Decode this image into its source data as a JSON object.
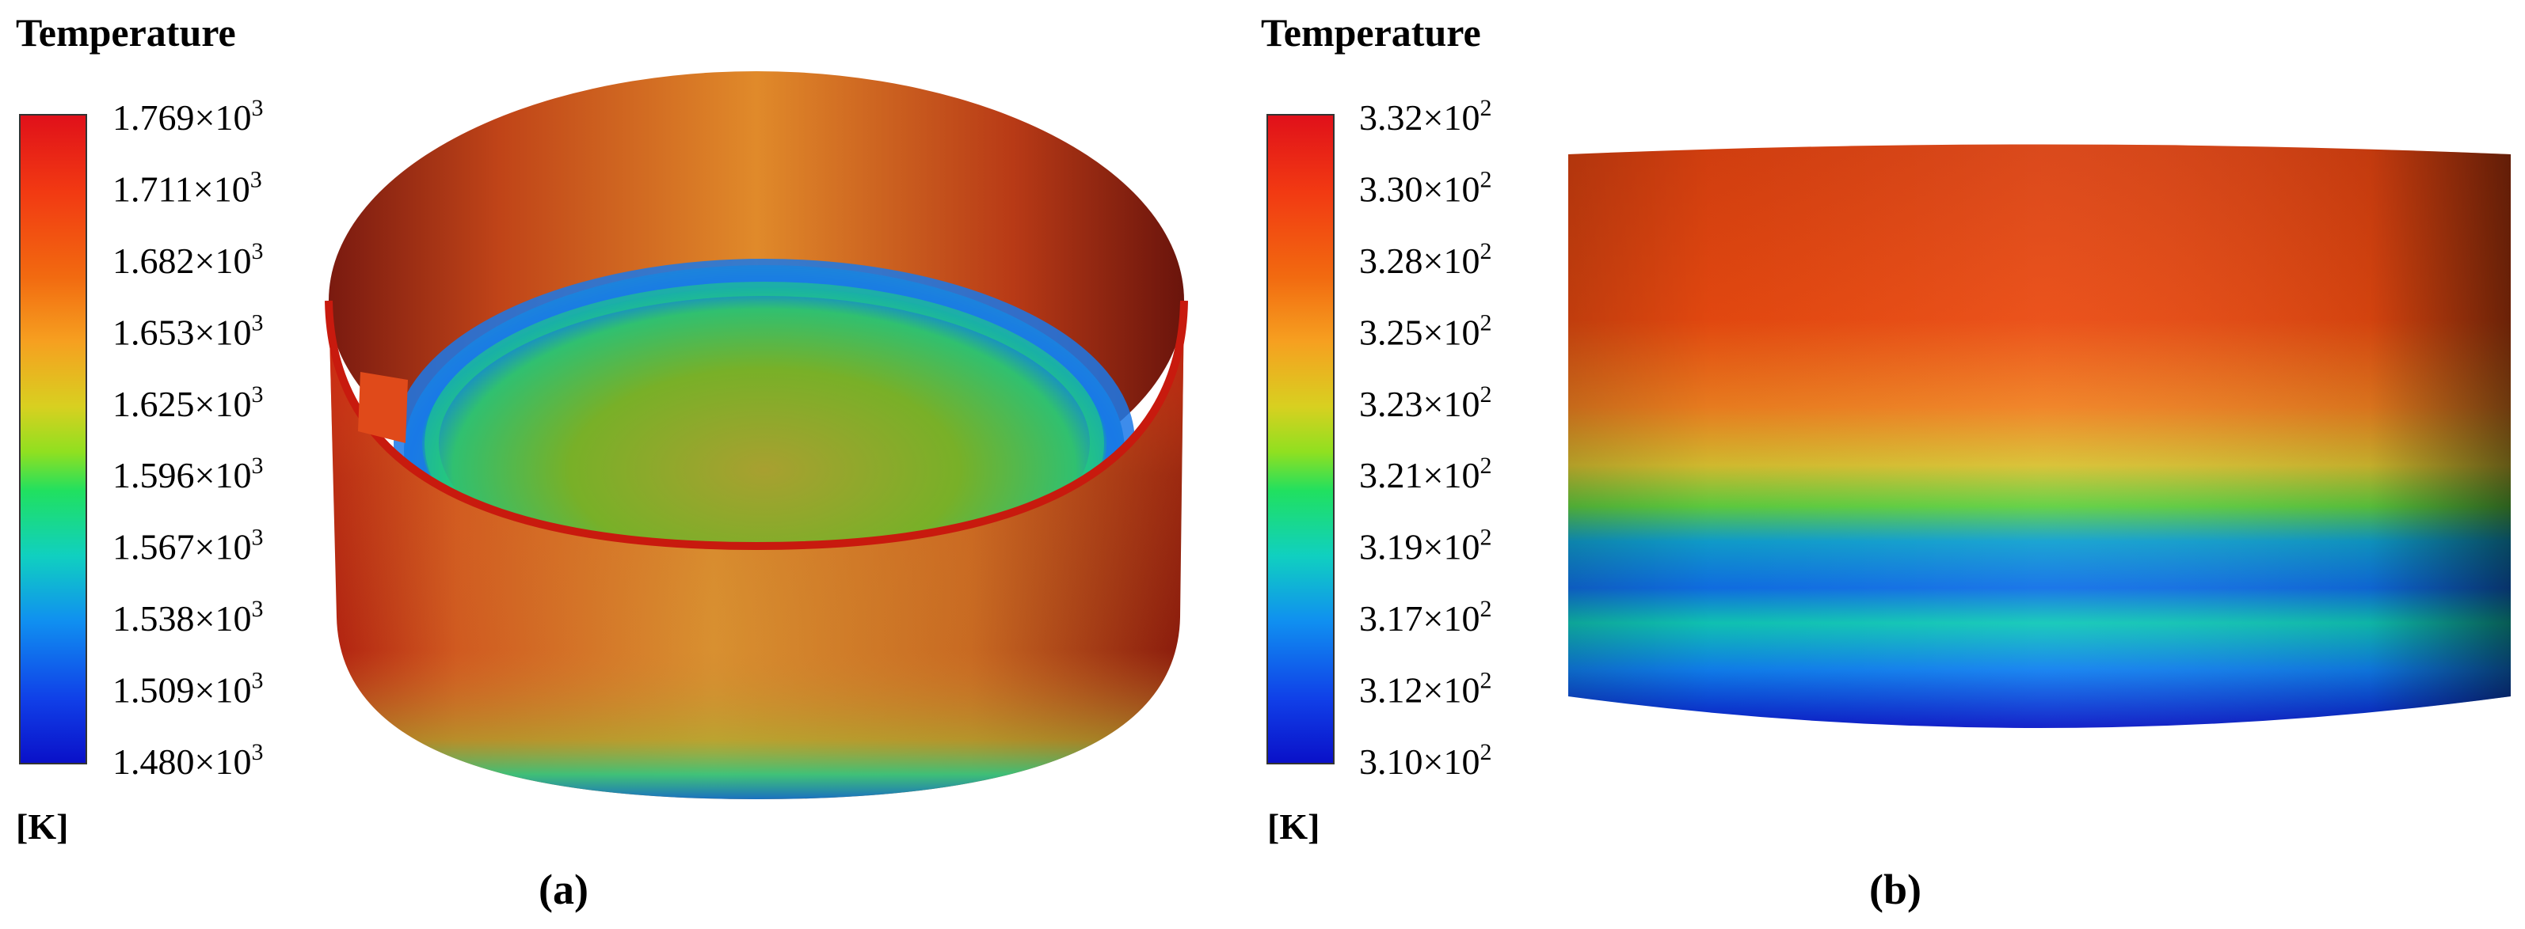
{
  "panels": [
    {
      "id": "a",
      "legend": {
        "title": "Temperature",
        "unit": "[K]",
        "ticks": [
          {
            "mantissa": "1.769",
            "exp": "3"
          },
          {
            "mantissa": "1.711",
            "exp": "3"
          },
          {
            "mantissa": "1.682",
            "exp": "3"
          },
          {
            "mantissa": "1.653",
            "exp": "3"
          },
          {
            "mantissa": "1.625",
            "exp": "3"
          },
          {
            "mantissa": "1.596",
            "exp": "3"
          },
          {
            "mantissa": "1.567",
            "exp": "3"
          },
          {
            "mantissa": "1.538",
            "exp": "3"
          },
          {
            "mantissa": "1.509",
            "exp": "3"
          },
          {
            "mantissa": "1.480",
            "exp": "3"
          }
        ]
      },
      "caption": "(a)",
      "view": "open cylindrical shell, perspective from above"
    },
    {
      "id": "b",
      "legend": {
        "title": "Temperature",
        "unit": "[K]",
        "ticks": [
          {
            "mantissa": "3.32",
            "exp": "2"
          },
          {
            "mantissa": "3.30",
            "exp": "2"
          },
          {
            "mantissa": "3.28",
            "exp": "2"
          },
          {
            "mantissa": "3.25",
            "exp": "2"
          },
          {
            "mantissa": "3.23",
            "exp": "2"
          },
          {
            "mantissa": "3.21",
            "exp": "2"
          },
          {
            "mantissa": "3.19",
            "exp": "2"
          },
          {
            "mantissa": "3.17",
            "exp": "2"
          },
          {
            "mantissa": "3.12",
            "exp": "2"
          },
          {
            "mantissa": "3.10",
            "exp": "2"
          }
        ]
      },
      "caption": "(b)",
      "view": "cylinder side view"
    }
  ],
  "colors": {
    "scale": [
      "#ff0000",
      "#ff6400",
      "#ffb400",
      "#c8e600",
      "#00e664",
      "#00c8c8",
      "#0096ff",
      "#0050ff",
      "#0000c8"
    ]
  }
}
